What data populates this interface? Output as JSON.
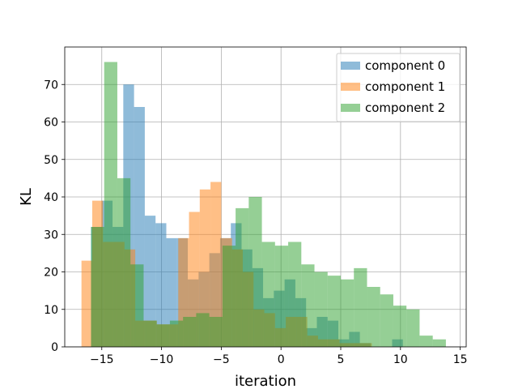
{
  "chart_data": {
    "type": "histogram",
    "xlabel": "iteration",
    "ylabel": "KL",
    "xlim": [
      -18.1,
      15.5
    ],
    "ylim": [
      0,
      80
    ],
    "xticks": [
      -15,
      -10,
      -5,
      0,
      5,
      10,
      15
    ],
    "xtick_labels": [
      "−15",
      "−10",
      "−5",
      "0",
      "5",
      "10",
      "15"
    ],
    "yticks": [
      0,
      10,
      20,
      30,
      40,
      50,
      60,
      70
    ],
    "grid": true,
    "legend_position": "top-right",
    "series": [
      {
        "name": "component 0",
        "color": "#1f77b4",
        "alpha": 0.5,
        "bins": [
          [
            -15.9,
            -15.0,
            32
          ],
          [
            -15.0,
            -14.1,
            39
          ],
          [
            -14.1,
            -13.2,
            32
          ],
          [
            -13.2,
            -12.3,
            70
          ],
          [
            -12.3,
            -11.4,
            64
          ],
          [
            -11.4,
            -10.5,
            35
          ],
          [
            -10.5,
            -9.6,
            33
          ],
          [
            -9.6,
            -8.7,
            29
          ],
          [
            -8.7,
            -7.8,
            29
          ],
          [
            -7.8,
            -6.9,
            18
          ],
          [
            -6.9,
            -6.0,
            20
          ],
          [
            -6.0,
            -5.1,
            25
          ],
          [
            -5.1,
            -4.2,
            29
          ],
          [
            -4.2,
            -3.3,
            33
          ],
          [
            -3.3,
            -2.4,
            26
          ],
          [
            -2.4,
            -1.5,
            21
          ],
          [
            -1.5,
            -0.6,
            13
          ],
          [
            -0.6,
            0.3,
            15
          ],
          [
            0.3,
            1.2,
            18
          ],
          [
            1.2,
            2.1,
            13
          ],
          [
            2.1,
            3.0,
            5
          ],
          [
            3.0,
            3.9,
            8
          ],
          [
            3.9,
            4.8,
            7
          ],
          [
            4.8,
            5.7,
            2
          ],
          [
            5.7,
            6.6,
            4
          ],
          [
            6.6,
            7.5,
            1
          ],
          [
            7.5,
            8.4,
            0
          ],
          [
            8.4,
            9.3,
            0
          ],
          [
            9.3,
            10.2,
            2
          ]
        ]
      },
      {
        "name": "component 1",
        "color": "#ff7f0e",
        "alpha": 0.5,
        "bins": [
          [
            -16.7,
            -15.8,
            23
          ],
          [
            -15.8,
            -14.9,
            39
          ],
          [
            -14.9,
            -14.0,
            28
          ],
          [
            -14.0,
            -13.1,
            28
          ],
          [
            -13.1,
            -12.2,
            26
          ],
          [
            -12.2,
            -11.3,
            7
          ],
          [
            -11.3,
            -10.4,
            7
          ],
          [
            -10.4,
            -9.5,
            6
          ],
          [
            -9.5,
            -8.6,
            6
          ],
          [
            -8.6,
            -7.7,
            29
          ],
          [
            -7.7,
            -6.8,
            36
          ],
          [
            -6.8,
            -5.9,
            42
          ],
          [
            -5.9,
            -5.0,
            44
          ],
          [
            -5.0,
            -4.1,
            29
          ],
          [
            -4.1,
            -3.2,
            26
          ],
          [
            -3.2,
            -2.3,
            20
          ],
          [
            -2.3,
            -1.4,
            10
          ],
          [
            -1.4,
            -0.5,
            9
          ],
          [
            -0.5,
            0.4,
            5
          ],
          [
            0.4,
            1.3,
            8
          ],
          [
            1.3,
            2.2,
            8
          ],
          [
            2.2,
            3.1,
            3
          ],
          [
            3.1,
            4.0,
            2
          ],
          [
            4.0,
            4.9,
            2
          ],
          [
            4.9,
            5.8,
            1
          ],
          [
            5.8,
            6.7,
            1
          ],
          [
            6.7,
            7.6,
            1
          ]
        ]
      },
      {
        "name": "component 2",
        "color": "#2ca02c",
        "alpha": 0.5,
        "bins": [
          [
            -15.9,
            -14.8,
            32
          ],
          [
            -14.8,
            -13.7,
            76
          ],
          [
            -13.7,
            -12.6,
            45
          ],
          [
            -12.6,
            -11.5,
            22
          ],
          [
            -11.5,
            -10.4,
            7
          ],
          [
            -10.4,
            -9.3,
            6
          ],
          [
            -9.3,
            -8.2,
            7
          ],
          [
            -8.2,
            -7.1,
            8
          ],
          [
            -7.1,
            -6.0,
            9
          ],
          [
            -6.0,
            -4.9,
            8
          ],
          [
            -4.9,
            -3.8,
            27
          ],
          [
            -3.8,
            -2.7,
            37
          ],
          [
            -2.7,
            -1.6,
            40
          ],
          [
            -1.6,
            -0.5,
            28
          ],
          [
            -0.5,
            0.6,
            27
          ],
          [
            0.6,
            1.7,
            28
          ],
          [
            1.7,
            2.8,
            22
          ],
          [
            2.8,
            3.9,
            20
          ],
          [
            3.9,
            5.0,
            19
          ],
          [
            5.0,
            6.1,
            18
          ],
          [
            6.1,
            7.2,
            21
          ],
          [
            7.2,
            8.3,
            16
          ],
          [
            8.3,
            9.4,
            14
          ],
          [
            9.4,
            10.5,
            11
          ],
          [
            10.5,
            11.6,
            10
          ],
          [
            11.6,
            12.7,
            3
          ],
          [
            12.7,
            13.8,
            2
          ]
        ]
      }
    ]
  }
}
